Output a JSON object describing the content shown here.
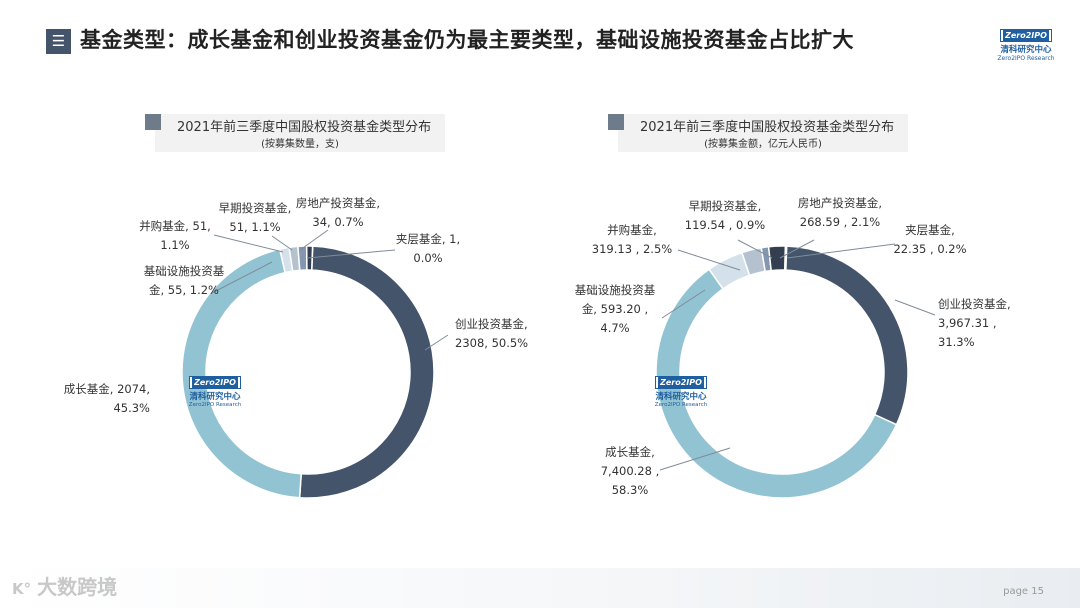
{
  "header": {
    "icon": "menu-lines-icon",
    "title": "基金类型：成长基金和创业投资基金仍为最主要类型，基础设施投资基金占比扩大"
  },
  "logo": {
    "brand_en": "Zero2IPO",
    "brand_cn": "清科研究中心",
    "sub_en": "Zero2IPO Research",
    "color": "#1f5f9f"
  },
  "colors": {
    "venture": "#44546a",
    "growth": "#92c3d2",
    "infrastructure": "#d5e1ea",
    "mna": "#b4c2d0",
    "early": "#8497b0",
    "real_estate": "#333f50",
    "mezzanine": "#1f2a38"
  },
  "chart_data": [
    {
      "type": "pie",
      "title": "2021年前三季度中国股权投资基金类型分布",
      "subtitle": "(按募集数量，支)",
      "slices": [
        {
          "key": "venture",
          "name": "创业投资基金",
          "value": 2308,
          "percent": 50.5,
          "label_l1": "创业投资基金,",
          "label_l2": "2308, 50.5%"
        },
        {
          "key": "growth",
          "name": "成长基金",
          "value": 2074,
          "percent": 45.3,
          "label_l1": "成长基金, 2074,",
          "label_l2": "45.3%"
        },
        {
          "key": "infrastructure",
          "name": "基础设施投资基金",
          "value": 55,
          "percent": 1.2,
          "label_l1": "基础设施投资基",
          "label_l2": "金, 55, 1.2%"
        },
        {
          "key": "mna",
          "name": "并购基金",
          "value": 51,
          "percent": 1.1,
          "label_l1": "并购基金, 51,",
          "label_l2": "1.1%"
        },
        {
          "key": "early",
          "name": "早期投资基金",
          "value": 51,
          "percent": 1.1,
          "label_l1": "早期投资基金,",
          "label_l2": "51, 1.1%"
        },
        {
          "key": "real_estate",
          "name": "房地产投资基金",
          "value": 34,
          "percent": 0.7,
          "label_l1": "房地产投资基金,",
          "label_l2": "34, 0.7%"
        },
        {
          "key": "mezzanine",
          "name": "夹层基金",
          "value": 1,
          "percent": 0.0,
          "label_l1": "夹层基金, 1,",
          "label_l2": "0.0%"
        }
      ]
    },
    {
      "type": "pie",
      "title": "2021年前三季度中国股权投资基金类型分布",
      "subtitle": "(按募集金额，亿元人民币)",
      "slices": [
        {
          "key": "venture",
          "name": "创业投资基金",
          "value": 3967.31,
          "percent": 31.3,
          "label_l1": "创业投资基金,",
          "label_l2": "3,967.31 ,",
          "label_l3": "31.3%"
        },
        {
          "key": "growth",
          "name": "成长基金",
          "value": 7400.28,
          "percent": 58.3,
          "label_l1": "成长基金,",
          "label_l2": "7,400.28 ,",
          "label_l3": "58.3%"
        },
        {
          "key": "infrastructure",
          "name": "基础设施投资基金",
          "value": 593.2,
          "percent": 4.7,
          "label_l1": "基础设施投资基",
          "label_l2": "金, 593.20 ,",
          "label_l3": "4.7%"
        },
        {
          "key": "mna",
          "name": "并购基金",
          "value": 319.13,
          "percent": 2.5,
          "label_l1": "并购基金,",
          "label_l2": "319.13 , 2.5%"
        },
        {
          "key": "early",
          "name": "早期投资基金",
          "value": 119.54,
          "percent": 0.9,
          "label_l1": "早期投资基金,",
          "label_l2": "119.54 , 0.9%"
        },
        {
          "key": "real_estate",
          "name": "房地产投资基金",
          "value": 268.59,
          "percent": 2.1,
          "label_l1": "房地产投资基金,",
          "label_l2": "268.59 , 2.1%"
        },
        {
          "key": "mezzanine",
          "name": "夹层基金",
          "value": 22.35,
          "percent": 0.2,
          "label_l1": "夹层基金,",
          "label_l2": "22.35 , 0.2%"
        }
      ]
    }
  ],
  "watermark": "大数跨境",
  "page_number": "page 15"
}
